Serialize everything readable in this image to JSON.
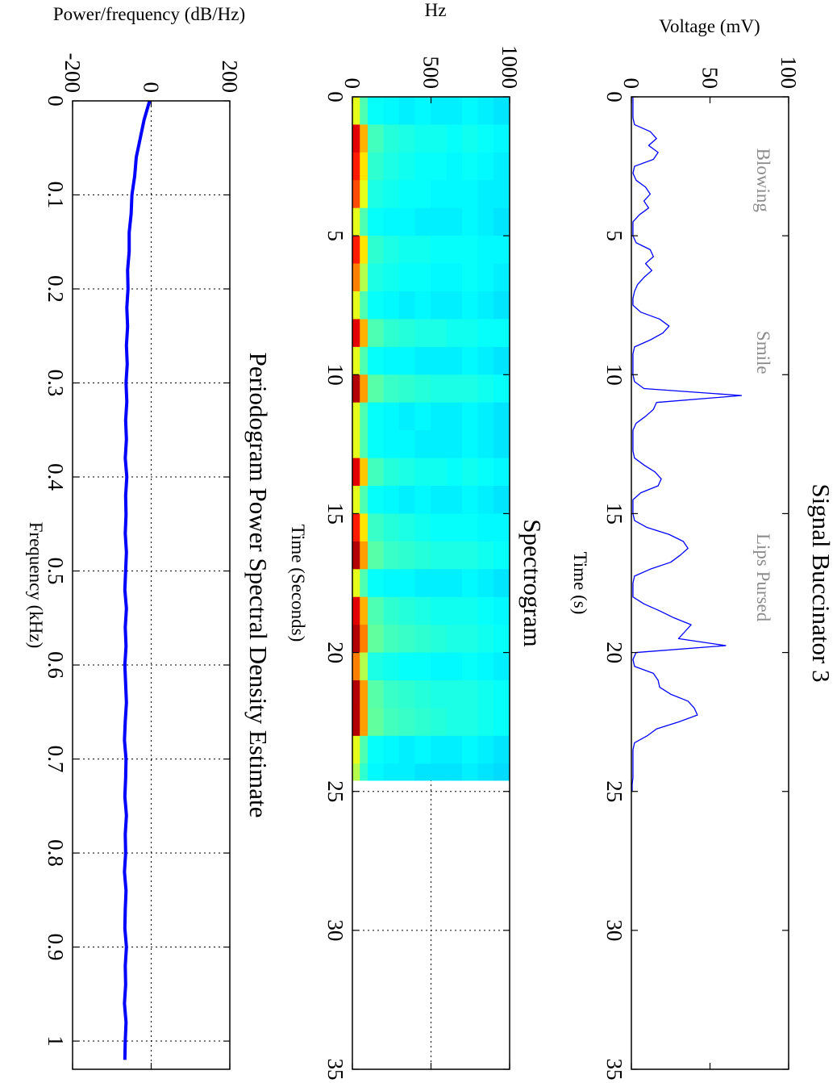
{
  "chart_data": [
    {
      "type": "line",
      "title": "Signal Buccinator 3",
      "xlabel": "Time (s)",
      "ylabel": "Voltage (mV)",
      "annotations": [
        "Blowing",
        "Smile",
        "Lips Pursed"
      ],
      "xlim": [
        0,
        35
      ],
      "xticks": [
        0,
        5,
        10,
        15,
        20,
        25,
        30,
        35
      ],
      "ylim": [
        0,
        100
      ],
      "yticks": [
        0,
        50,
        100
      ],
      "grid": false,
      "color": "#0000ff",
      "x": [
        0,
        0.25,
        0.5,
        0.75,
        1,
        1.25,
        1.5,
        1.75,
        2,
        2.25,
        2.5,
        2.75,
        3,
        3.25,
        3.5,
        3.75,
        4,
        4.25,
        4.5,
        4.75,
        5,
        5.25,
        5.5,
        5.75,
        6,
        6.25,
        6.5,
        6.75,
        7,
        7.25,
        7.5,
        7.75,
        8,
        8.25,
        8.5,
        8.75,
        9,
        9.25,
        9.5,
        9.75,
        10,
        10.25,
        10.5,
        10.75,
        11,
        11.25,
        11.5,
        11.75,
        12,
        12.25,
        12.5,
        12.75,
        13,
        13.25,
        13.5,
        13.75,
        14,
        14.25,
        14.5,
        14.75,
        15,
        15.25,
        15.5,
        15.75,
        16,
        16.25,
        16.5,
        16.75,
        17,
        17.25,
        17.5,
        17.75,
        18,
        18.25,
        18.5,
        18.75,
        19,
        19.25,
        19.5,
        19.75,
        20,
        20.25,
        20.5,
        20.75,
        21,
        21.25,
        21.5,
        21.75,
        22,
        22.25,
        22.5,
        22.75,
        23,
        23.25,
        23.5,
        23.75,
        24,
        24.25,
        24.5,
        24.75,
        25
      ],
      "values": [
        1,
        1,
        1,
        1,
        2,
        12,
        16,
        11,
        17,
        14,
        2,
        1,
        3,
        9,
        12,
        8,
        11,
        5,
        1,
        1,
        1,
        3,
        12,
        14,
        9,
        13,
        8,
        4,
        2,
        1,
        1,
        6,
        18,
        24,
        20,
        12,
        2,
        1,
        1,
        1,
        1,
        2,
        8,
        70,
        16,
        14,
        9,
        3,
        1,
        1,
        1,
        1,
        2,
        8,
        15,
        19,
        17,
        6,
        1,
        1,
        1,
        2,
        10,
        24,
        33,
        36,
        31,
        25,
        12,
        2,
        1,
        1,
        1,
        8,
        18,
        27,
        38,
        34,
        30,
        60,
        3,
        1,
        2,
        14,
        17,
        18,
        25,
        36,
        40,
        42,
        30,
        16,
        10,
        2,
        1,
        1,
        1,
        1,
        1,
        0.5,
        0.5
      ]
    },
    {
      "type": "heatmap",
      "title": "Spectrogram",
      "xlabel": "Time (Seconds)",
      "ylabel": "Hz",
      "xlim": [
        0,
        35
      ],
      "xticks": [
        0,
        5,
        10,
        15,
        20,
        25,
        30,
        35
      ],
      "ylim": [
        0,
        1000
      ],
      "yticks": [
        0,
        500,
        1000
      ],
      "grid": true,
      "colormap": "jet",
      "clim": [
        0,
        1
      ],
      "xedges": [
        0,
        1,
        2,
        3,
        4,
        5,
        6,
        7,
        8,
        9,
        10,
        11,
        12,
        13,
        14,
        15,
        16,
        17,
        18,
        19,
        20,
        21,
        22,
        23,
        24,
        24.6
      ],
      "yedges": [
        0,
        50,
        100,
        200,
        300,
        400,
        500,
        600,
        700,
        800,
        900,
        1000
      ],
      "values": [
        [
          0.6,
          0.9,
          0.85,
          0.8,
          0.6,
          0.85,
          0.75,
          0.6,
          0.9,
          0.6,
          0.95,
          0.6,
          0.6,
          0.9,
          0.6,
          0.85,
          0.95,
          0.6,
          0.9,
          0.95,
          0.75,
          0.95,
          0.95,
          0.6,
          0.55
        ],
        [
          0.45,
          0.7,
          0.65,
          0.6,
          0.45,
          0.65,
          0.55,
          0.45,
          0.7,
          0.45,
          0.72,
          0.45,
          0.45,
          0.68,
          0.45,
          0.65,
          0.72,
          0.45,
          0.7,
          0.75,
          0.55,
          0.72,
          0.72,
          0.45,
          0.42
        ],
        [
          0.38,
          0.44,
          0.42,
          0.4,
          0.38,
          0.42,
          0.4,
          0.38,
          0.45,
          0.38,
          0.46,
          0.38,
          0.38,
          0.44,
          0.38,
          0.43,
          0.46,
          0.38,
          0.45,
          0.47,
          0.4,
          0.46,
          0.47,
          0.38,
          0.37
        ],
        [
          0.37,
          0.41,
          0.4,
          0.39,
          0.37,
          0.4,
          0.39,
          0.37,
          0.42,
          0.37,
          0.43,
          0.37,
          0.37,
          0.41,
          0.37,
          0.41,
          0.43,
          0.37,
          0.42,
          0.44,
          0.39,
          0.43,
          0.44,
          0.37,
          0.36
        ],
        [
          0.36,
          0.4,
          0.39,
          0.38,
          0.37,
          0.39,
          0.38,
          0.36,
          0.41,
          0.37,
          0.42,
          0.36,
          0.37,
          0.4,
          0.36,
          0.4,
          0.42,
          0.37,
          0.41,
          0.43,
          0.38,
          0.42,
          0.43,
          0.36,
          0.36
        ],
        [
          0.37,
          0.39,
          0.38,
          0.38,
          0.36,
          0.39,
          0.38,
          0.37,
          0.4,
          0.36,
          0.41,
          0.37,
          0.36,
          0.39,
          0.37,
          0.39,
          0.41,
          0.36,
          0.4,
          0.42,
          0.38,
          0.41,
          0.42,
          0.37,
          0.35
        ],
        [
          0.36,
          0.39,
          0.38,
          0.37,
          0.36,
          0.38,
          0.37,
          0.36,
          0.4,
          0.36,
          0.4,
          0.36,
          0.36,
          0.39,
          0.36,
          0.38,
          0.4,
          0.36,
          0.39,
          0.41,
          0.37,
          0.4,
          0.41,
          0.36,
          0.35
        ],
        [
          0.36,
          0.38,
          0.37,
          0.37,
          0.36,
          0.38,
          0.37,
          0.36,
          0.39,
          0.36,
          0.4,
          0.36,
          0.36,
          0.38,
          0.36,
          0.38,
          0.4,
          0.36,
          0.39,
          0.4,
          0.37,
          0.4,
          0.4,
          0.36,
          0.35
        ],
        [
          0.37,
          0.39,
          0.38,
          0.37,
          0.37,
          0.38,
          0.38,
          0.37,
          0.39,
          0.37,
          0.4,
          0.37,
          0.37,
          0.39,
          0.37,
          0.38,
          0.4,
          0.37,
          0.39,
          0.4,
          0.38,
          0.4,
          0.4,
          0.37,
          0.36
        ],
        [
          0.36,
          0.38,
          0.37,
          0.36,
          0.36,
          0.37,
          0.37,
          0.36,
          0.38,
          0.36,
          0.39,
          0.36,
          0.36,
          0.38,
          0.36,
          0.37,
          0.39,
          0.36,
          0.38,
          0.39,
          0.37,
          0.39,
          0.39,
          0.36,
          0.35
        ],
        [
          0.35,
          0.37,
          0.36,
          0.36,
          0.35,
          0.37,
          0.36,
          0.35,
          0.38,
          0.35,
          0.38,
          0.35,
          0.35,
          0.37,
          0.35,
          0.37,
          0.38,
          0.35,
          0.37,
          0.38,
          0.36,
          0.38,
          0.38,
          0.35,
          0.34
        ]
      ]
    },
    {
      "type": "line",
      "title": "Periodogram Power Spectral Density Estimate",
      "xlabel": "Frequency (kHz)",
      "ylabel": "Power/frequency (dB/Hz)",
      "xlim": [
        0,
        1.03
      ],
      "xticks": [
        0,
        0.1,
        0.2,
        0.3,
        0.4,
        0.5,
        0.6,
        0.7,
        0.8,
        0.9,
        1
      ],
      "ylim": [
        -200,
        200
      ],
      "yticks": [
        -200,
        0,
        200
      ],
      "grid": true,
      "color": "#0000ff",
      "x": [
        0,
        0.02,
        0.04,
        0.06,
        0.08,
        0.1,
        0.12,
        0.14,
        0.16,
        0.18,
        0.2,
        0.22,
        0.24,
        0.26,
        0.28,
        0.3,
        0.32,
        0.34,
        0.36,
        0.38,
        0.4,
        0.42,
        0.44,
        0.46,
        0.48,
        0.5,
        0.52,
        0.54,
        0.56,
        0.58,
        0.6,
        0.62,
        0.64,
        0.66,
        0.68,
        0.7,
        0.72,
        0.74,
        0.76,
        0.78,
        0.8,
        0.82,
        0.84,
        0.86,
        0.88,
        0.9,
        0.92,
        0.94,
        0.96,
        0.98,
        1,
        1.02
      ],
      "values": [
        -4,
        -18,
        -28,
        -38,
        -42,
        -49,
        -51,
        -56,
        -56,
        -60,
        -59,
        -62,
        -60,
        -63,
        -61,
        -64,
        -62,
        -65,
        -63,
        -66,
        -62,
        -65,
        -64,
        -66,
        -63,
        -65,
        -67,
        -63,
        -66,
        -64,
        -67,
        -65,
        -63,
        -66,
        -68,
        -64,
        -65,
        -67,
        -63,
        -66,
        -65,
        -68,
        -64,
        -66,
        -67,
        -63,
        -66,
        -65,
        -68,
        -64,
        -66,
        -67
      ]
    }
  ]
}
